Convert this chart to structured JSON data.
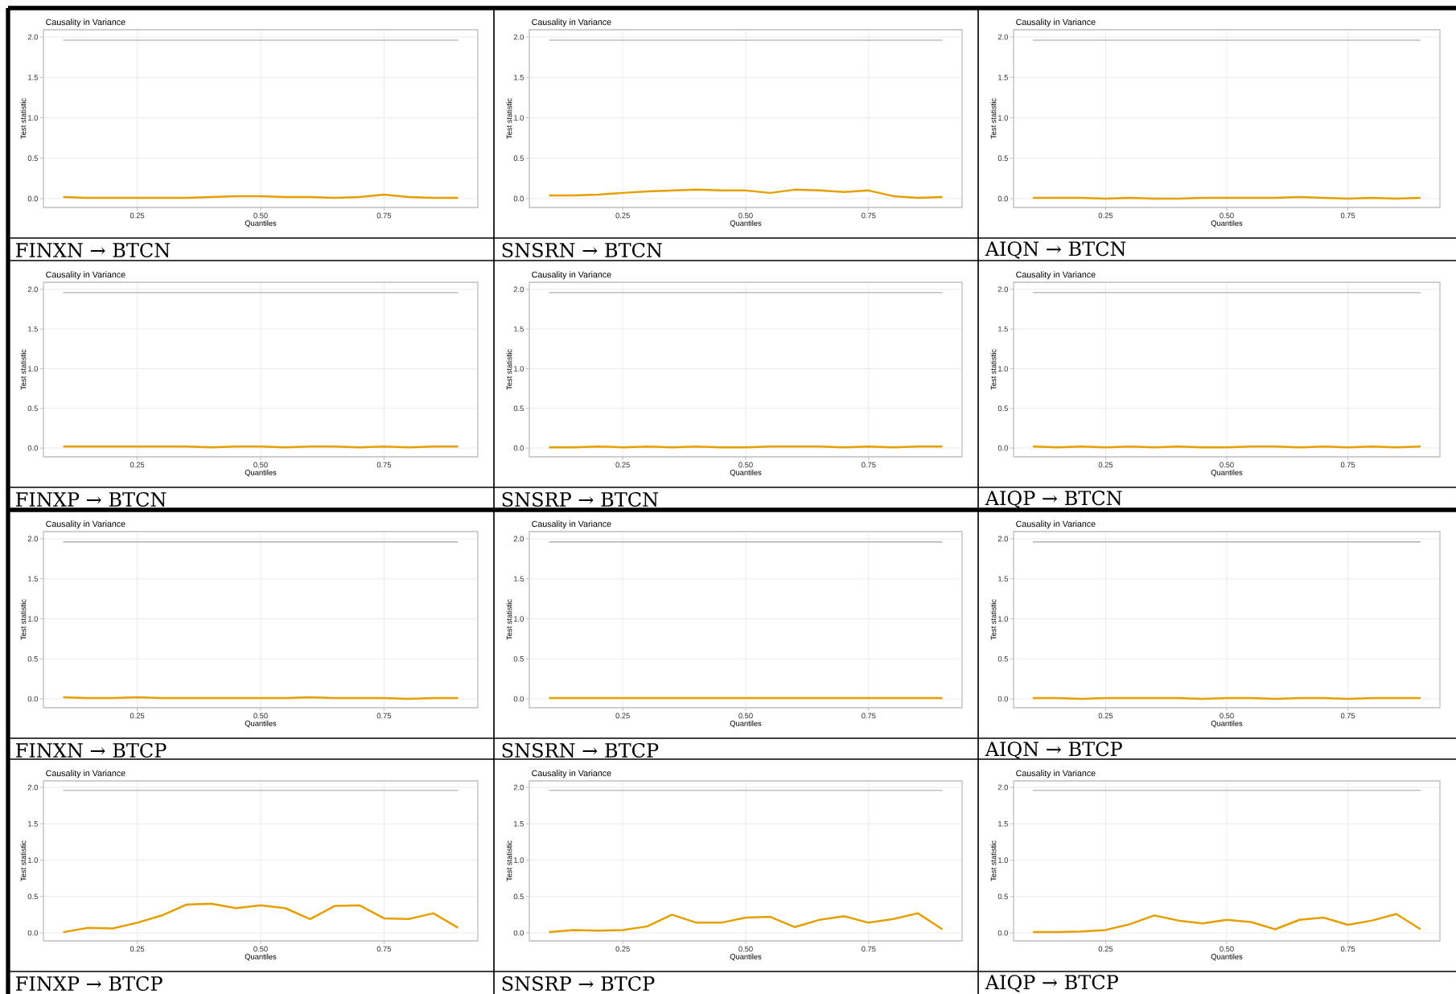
{
  "chart_data": [
    {
      "type": "line",
      "title": "Causality in Variance",
      "xlabel": "Quantiles",
      "ylabel": "Test statistic",
      "annotations": [
        "FINXN → BTCN"
      ],
      "ref_lines": [
        {
          "axis": "y",
          "value": 1.96,
          "color": "#bdbdbd"
        }
      ],
      "x": [
        0.1,
        0.15,
        0.2,
        0.25,
        0.3,
        0.35,
        0.4,
        0.45,
        0.5,
        0.55,
        0.6,
        0.65,
        0.7,
        0.75,
        0.8,
        0.85,
        0.9
      ],
      "xlim": [
        0.06,
        0.94
      ],
      "ylim": [
        -0.11,
        2.09
      ],
      "xticks": [
        {
          "value": 0.25,
          "label": "0.25"
        },
        {
          "value": 0.5,
          "label": "0.50"
        },
        {
          "value": 0.75,
          "label": "0.75"
        }
      ],
      "yticks": [
        {
          "value": 0,
          "label": "0.0"
        },
        {
          "value": 0.5,
          "label": "0.5"
        },
        {
          "value": 1,
          "label": "1.0"
        },
        {
          "value": 1.5,
          "label": "1.5"
        },
        {
          "value": 2,
          "label": "2.0"
        }
      ],
      "grid": true,
      "series": [
        {
          "color": "#e69f00",
          "values": [
            0.02,
            0.01,
            0.01,
            0.01,
            0.01,
            0.01,
            0.02,
            0.03,
            0.03,
            0.02,
            0.02,
            0.01,
            0.02,
            0.05,
            0.02,
            0.01,
            0.01
          ]
        }
      ]
    },
    {
      "type": "line",
      "title": "Causality in Variance",
      "xlabel": "Quantiles",
      "ylabel": "Test statistic",
      "annotations": [
        "SNSRN → BTCN"
      ],
      "ref_lines": [
        {
          "axis": "y",
          "value": 1.96,
          "color": "#bdbdbd"
        }
      ],
      "x": [
        0.1,
        0.15,
        0.2,
        0.25,
        0.3,
        0.35,
        0.4,
        0.45,
        0.5,
        0.55,
        0.6,
        0.65,
        0.7,
        0.75,
        0.8,
        0.85,
        0.9
      ],
      "xlim": [
        0.06,
        0.94
      ],
      "ylim": [
        -0.11,
        2.09
      ],
      "xticks": [
        {
          "value": 0.25,
          "label": "0.25"
        },
        {
          "value": 0.5,
          "label": "0.50"
        },
        {
          "value": 0.75,
          "label": "0.75"
        }
      ],
      "yticks": [
        {
          "value": 0,
          "label": "0.0"
        },
        {
          "value": 0.5,
          "label": "0.5"
        },
        {
          "value": 1,
          "label": "1.0"
        },
        {
          "value": 1.5,
          "label": "1.5"
        },
        {
          "value": 2,
          "label": "2.0"
        }
      ],
      "grid": true,
      "series": [
        {
          "color": "#e69f00",
          "values": [
            0.04,
            0.04,
            0.05,
            0.07,
            0.09,
            0.1,
            0.11,
            0.1,
            0.1,
            0.07,
            0.11,
            0.1,
            0.08,
            0.1,
            0.03,
            0.01,
            0.02
          ]
        }
      ]
    },
    {
      "type": "line",
      "title": "Causality in Variance",
      "xlabel": "Quantiles",
      "ylabel": "Test statistic",
      "annotations": [
        "AIQN → BTCN"
      ],
      "ref_lines": [
        {
          "axis": "y",
          "value": 1.96,
          "color": "#bdbdbd"
        }
      ],
      "x": [
        0.1,
        0.15,
        0.2,
        0.25,
        0.3,
        0.35,
        0.4,
        0.45,
        0.5,
        0.55,
        0.6,
        0.65,
        0.7,
        0.75,
        0.8,
        0.85,
        0.9
      ],
      "xlim": [
        0.06,
        0.94
      ],
      "ylim": [
        -0.11,
        2.09
      ],
      "xticks": [
        {
          "value": 0.25,
          "label": "0.25"
        },
        {
          "value": 0.5,
          "label": "0.50"
        },
        {
          "value": 0.75,
          "label": "0.75"
        }
      ],
      "yticks": [
        {
          "value": 0,
          "label": "0.0"
        },
        {
          "value": 0.5,
          "label": "0.5"
        },
        {
          "value": 1,
          "label": "1.0"
        },
        {
          "value": 1.5,
          "label": "1.5"
        },
        {
          "value": 2,
          "label": "2.0"
        }
      ],
      "grid": true,
      "series": [
        {
          "color": "#e69f00",
          "values": [
            0.01,
            0.01,
            0.01,
            0.0,
            0.01,
            0.0,
            0.0,
            0.01,
            0.01,
            0.01,
            0.01,
            0.02,
            0.01,
            0.0,
            0.01,
            0.0,
            0.01
          ]
        }
      ]
    },
    {
      "type": "line",
      "title": "Causality in Variance",
      "xlabel": "Quantiles",
      "ylabel": "Test statistic",
      "annotations": [
        "FINXP → BTCN"
      ],
      "ref_lines": [
        {
          "axis": "y",
          "value": 1.96,
          "color": "#bdbdbd"
        }
      ],
      "x": [
        0.1,
        0.15,
        0.2,
        0.25,
        0.3,
        0.35,
        0.4,
        0.45,
        0.5,
        0.55,
        0.6,
        0.65,
        0.7,
        0.75,
        0.8,
        0.85,
        0.9
      ],
      "xlim": [
        0.06,
        0.94
      ],
      "ylim": [
        -0.11,
        2.09
      ],
      "xticks": [
        {
          "value": 0.25,
          "label": "0.25"
        },
        {
          "value": 0.5,
          "label": "0.50"
        },
        {
          "value": 0.75,
          "label": "0.75"
        }
      ],
      "yticks": [
        {
          "value": 0,
          "label": "0.0"
        },
        {
          "value": 0.5,
          "label": "0.5"
        },
        {
          "value": 1,
          "label": "1.0"
        },
        {
          "value": 1.5,
          "label": "1.5"
        },
        {
          "value": 2,
          "label": "2.0"
        }
      ],
      "grid": true,
      "series": [
        {
          "color": "#e69f00",
          "values": [
            0.02,
            0.02,
            0.02,
            0.02,
            0.02,
            0.02,
            0.01,
            0.02,
            0.02,
            0.01,
            0.02,
            0.02,
            0.01,
            0.02,
            0.01,
            0.02,
            0.02
          ]
        }
      ]
    },
    {
      "type": "line",
      "title": "Causality in Variance",
      "xlabel": "Quantiles",
      "ylabel": "Test statistic",
      "annotations": [
        "SNSRP → BTCN"
      ],
      "ref_lines": [
        {
          "axis": "y",
          "value": 1.96,
          "color": "#bdbdbd"
        }
      ],
      "x": [
        0.1,
        0.15,
        0.2,
        0.25,
        0.3,
        0.35,
        0.4,
        0.45,
        0.5,
        0.55,
        0.6,
        0.65,
        0.7,
        0.75,
        0.8,
        0.85,
        0.9
      ],
      "xlim": [
        0.06,
        0.94
      ],
      "ylim": [
        -0.11,
        2.09
      ],
      "xticks": [
        {
          "value": 0.25,
          "label": "0.25"
        },
        {
          "value": 0.5,
          "label": "0.50"
        },
        {
          "value": 0.75,
          "label": "0.75"
        }
      ],
      "yticks": [
        {
          "value": 0,
          "label": "0.0"
        },
        {
          "value": 0.5,
          "label": "0.5"
        },
        {
          "value": 1,
          "label": "1.0"
        },
        {
          "value": 1.5,
          "label": "1.5"
        },
        {
          "value": 2,
          "label": "2.0"
        }
      ],
      "grid": true,
      "series": [
        {
          "color": "#e69f00",
          "values": [
            0.01,
            0.01,
            0.02,
            0.01,
            0.02,
            0.01,
            0.02,
            0.01,
            0.01,
            0.02,
            0.02,
            0.02,
            0.01,
            0.02,
            0.01,
            0.02,
            0.02
          ]
        }
      ]
    },
    {
      "type": "line",
      "title": "Causality in Variance",
      "xlabel": "Quantiles",
      "ylabel": "Test statistic",
      "annotations": [
        "AIQP → BTCN"
      ],
      "ref_lines": [
        {
          "axis": "y",
          "value": 1.96,
          "color": "#bdbdbd"
        }
      ],
      "x": [
        0.1,
        0.15,
        0.2,
        0.25,
        0.3,
        0.35,
        0.4,
        0.45,
        0.5,
        0.55,
        0.6,
        0.65,
        0.7,
        0.75,
        0.8,
        0.85,
        0.9
      ],
      "xlim": [
        0.06,
        0.94
      ],
      "ylim": [
        -0.11,
        2.09
      ],
      "xticks": [
        {
          "value": 0.25,
          "label": "0.25"
        },
        {
          "value": 0.5,
          "label": "0.50"
        },
        {
          "value": 0.75,
          "label": "0.75"
        }
      ],
      "yticks": [
        {
          "value": 0,
          "label": "0.0"
        },
        {
          "value": 0.5,
          "label": "0.5"
        },
        {
          "value": 1,
          "label": "1.0"
        },
        {
          "value": 1.5,
          "label": "1.5"
        },
        {
          "value": 2,
          "label": "2.0"
        }
      ],
      "grid": true,
      "series": [
        {
          "color": "#e69f00",
          "values": [
            0.02,
            0.01,
            0.02,
            0.01,
            0.02,
            0.01,
            0.02,
            0.01,
            0.01,
            0.02,
            0.02,
            0.01,
            0.02,
            0.01,
            0.02,
            0.01,
            0.02
          ]
        }
      ]
    },
    {
      "type": "line",
      "title": "Causality in Variance",
      "xlabel": "Quantiles",
      "ylabel": "Test statistic",
      "annotations": [
        "FINXN → BTCP"
      ],
      "ref_lines": [
        {
          "axis": "y",
          "value": 1.96,
          "color": "#bdbdbd"
        }
      ],
      "x": [
        0.1,
        0.15,
        0.2,
        0.25,
        0.3,
        0.35,
        0.4,
        0.45,
        0.5,
        0.55,
        0.6,
        0.65,
        0.7,
        0.75,
        0.8,
        0.85,
        0.9
      ],
      "xlim": [
        0.06,
        0.94
      ],
      "ylim": [
        -0.11,
        2.09
      ],
      "xticks": [
        {
          "value": 0.25,
          "label": "0.25"
        },
        {
          "value": 0.5,
          "label": "0.50"
        },
        {
          "value": 0.75,
          "label": "0.75"
        }
      ],
      "yticks": [
        {
          "value": 0,
          "label": "0.0"
        },
        {
          "value": 0.5,
          "label": "0.5"
        },
        {
          "value": 1,
          "label": "1.0"
        },
        {
          "value": 1.5,
          "label": "1.5"
        },
        {
          "value": 2,
          "label": "2.0"
        }
      ],
      "grid": true,
      "series": [
        {
          "color": "#e69f00",
          "values": [
            0.02,
            0.01,
            0.01,
            0.02,
            0.01,
            0.01,
            0.01,
            0.01,
            0.01,
            0.01,
            0.02,
            0.01,
            0.01,
            0.01,
            0.0,
            0.01,
            0.01
          ]
        }
      ]
    },
    {
      "type": "line",
      "title": "Causality in Variance",
      "xlabel": "Quantiles",
      "ylabel": "Test statistic",
      "annotations": [
        "SNSRN → BTCP"
      ],
      "ref_lines": [
        {
          "axis": "y",
          "value": 1.96,
          "color": "#bdbdbd"
        }
      ],
      "x": [
        0.1,
        0.15,
        0.2,
        0.25,
        0.3,
        0.35,
        0.4,
        0.45,
        0.5,
        0.55,
        0.6,
        0.65,
        0.7,
        0.75,
        0.8,
        0.85,
        0.9
      ],
      "xlim": [
        0.06,
        0.94
      ],
      "ylim": [
        -0.11,
        2.09
      ],
      "xticks": [
        {
          "value": 0.25,
          "label": "0.25"
        },
        {
          "value": 0.5,
          "label": "0.50"
        },
        {
          "value": 0.75,
          "label": "0.75"
        }
      ],
      "yticks": [
        {
          "value": 0,
          "label": "0.0"
        },
        {
          "value": 0.5,
          "label": "0.5"
        },
        {
          "value": 1,
          "label": "1.0"
        },
        {
          "value": 1.5,
          "label": "1.5"
        },
        {
          "value": 2,
          "label": "2.0"
        }
      ],
      "grid": true,
      "series": [
        {
          "color": "#e69f00",
          "values": [
            0.01,
            0.01,
            0.01,
            0.01,
            0.01,
            0.01,
            0.01,
            0.01,
            0.01,
            0.01,
            0.01,
            0.01,
            0.01,
            0.01,
            0.01,
            0.01,
            0.01
          ]
        }
      ]
    },
    {
      "type": "line",
      "title": "Causality in Variance",
      "xlabel": "Quantiles",
      "ylabel": "Test statistic",
      "annotations": [
        "AIQN → BTCP"
      ],
      "ref_lines": [
        {
          "axis": "y",
          "value": 1.96,
          "color": "#bdbdbd"
        }
      ],
      "x": [
        0.1,
        0.15,
        0.2,
        0.25,
        0.3,
        0.35,
        0.4,
        0.45,
        0.5,
        0.55,
        0.6,
        0.65,
        0.7,
        0.75,
        0.8,
        0.85,
        0.9
      ],
      "xlim": [
        0.06,
        0.94
      ],
      "ylim": [
        -0.11,
        2.09
      ],
      "xticks": [
        {
          "value": 0.25,
          "label": "0.25"
        },
        {
          "value": 0.5,
          "label": "0.50"
        },
        {
          "value": 0.75,
          "label": "0.75"
        }
      ],
      "yticks": [
        {
          "value": 0,
          "label": "0.0"
        },
        {
          "value": 0.5,
          "label": "0.5"
        },
        {
          "value": 1,
          "label": "1.0"
        },
        {
          "value": 1.5,
          "label": "1.5"
        },
        {
          "value": 2,
          "label": "2.0"
        }
      ],
      "grid": true,
      "series": [
        {
          "color": "#e69f00",
          "values": [
            0.01,
            0.01,
            0.0,
            0.01,
            0.01,
            0.01,
            0.01,
            0.0,
            0.01,
            0.01,
            0.0,
            0.01,
            0.01,
            0.0,
            0.01,
            0.01,
            0.01
          ]
        }
      ]
    },
    {
      "type": "line",
      "title": "Causality in Variance",
      "xlabel": "Quantiles",
      "ylabel": "Test statistic",
      "annotations": [
        "FINXP → BTCP"
      ],
      "ref_lines": [
        {
          "axis": "y",
          "value": 1.96,
          "color": "#bdbdbd"
        }
      ],
      "x": [
        0.1,
        0.15,
        0.2,
        0.25,
        0.3,
        0.35,
        0.4,
        0.45,
        0.5,
        0.55,
        0.6,
        0.65,
        0.7,
        0.75,
        0.8,
        0.85,
        0.9
      ],
      "xlim": [
        0.06,
        0.94
      ],
      "ylim": [
        -0.11,
        2.09
      ],
      "xticks": [
        {
          "value": 0.25,
          "label": "0.25"
        },
        {
          "value": 0.5,
          "label": "0.50"
        },
        {
          "value": 0.75,
          "label": "0.75"
        }
      ],
      "yticks": [
        {
          "value": 0,
          "label": "0.0"
        },
        {
          "value": 0.5,
          "label": "0.5"
        },
        {
          "value": 1,
          "label": "1.0"
        },
        {
          "value": 1.5,
          "label": "1.5"
        },
        {
          "value": 2,
          "label": "2.0"
        }
      ],
      "grid": true,
      "series": [
        {
          "color": "#e69f00",
          "values": [
            0.01,
            0.07,
            0.06,
            0.14,
            0.24,
            0.39,
            0.4,
            0.34,
            0.38,
            0.34,
            0.19,
            0.37,
            0.38,
            0.2,
            0.19,
            0.27,
            0.07
          ]
        }
      ]
    },
    {
      "type": "line",
      "title": "Causality in Variance",
      "xlabel": "Quantiles",
      "ylabel": "Test statistic",
      "annotations": [
        "SNSRP → BTCP"
      ],
      "ref_lines": [
        {
          "axis": "y",
          "value": 1.96,
          "color": "#bdbdbd"
        }
      ],
      "x": [
        0.1,
        0.15,
        0.2,
        0.25,
        0.3,
        0.35,
        0.4,
        0.45,
        0.5,
        0.55,
        0.6,
        0.65,
        0.7,
        0.75,
        0.8,
        0.85,
        0.9
      ],
      "xlim": [
        0.06,
        0.94
      ],
      "ylim": [
        -0.11,
        2.09
      ],
      "xticks": [
        {
          "value": 0.25,
          "label": "0.25"
        },
        {
          "value": 0.5,
          "label": "0.50"
        },
        {
          "value": 0.75,
          "label": "0.75"
        }
      ],
      "yticks": [
        {
          "value": 0,
          "label": "0.0"
        },
        {
          "value": 0.5,
          "label": "0.5"
        },
        {
          "value": 1,
          "label": "1.0"
        },
        {
          "value": 1.5,
          "label": "1.5"
        },
        {
          "value": 2,
          "label": "2.0"
        }
      ],
      "grid": true,
      "series": [
        {
          "color": "#e69f00",
          "values": [
            0.01,
            0.04,
            0.03,
            0.04,
            0.09,
            0.25,
            0.14,
            0.14,
            0.21,
            0.22,
            0.08,
            0.18,
            0.23,
            0.14,
            0.19,
            0.27,
            0.05
          ]
        }
      ]
    },
    {
      "type": "line",
      "title": "Causality in Variance",
      "xlabel": "Quantiles",
      "ylabel": "Test statistic",
      "annotations": [
        "AIQP → BTCP"
      ],
      "ref_lines": [
        {
          "axis": "y",
          "value": 1.96,
          "color": "#bdbdbd"
        }
      ],
      "x": [
        0.1,
        0.15,
        0.2,
        0.25,
        0.3,
        0.35,
        0.4,
        0.45,
        0.5,
        0.55,
        0.6,
        0.65,
        0.7,
        0.75,
        0.8,
        0.85,
        0.9
      ],
      "xlim": [
        0.06,
        0.94
      ],
      "ylim": [
        -0.11,
        2.09
      ],
      "xticks": [
        {
          "value": 0.25,
          "label": "0.25"
        },
        {
          "value": 0.5,
          "label": "0.50"
        },
        {
          "value": 0.75,
          "label": "0.75"
        }
      ],
      "yticks": [
        {
          "value": 0,
          "label": "0.0"
        },
        {
          "value": 0.5,
          "label": "0.5"
        },
        {
          "value": 1,
          "label": "1.0"
        },
        {
          "value": 1.5,
          "label": "1.5"
        },
        {
          "value": 2,
          "label": "2.0"
        }
      ],
      "grid": true,
      "series": [
        {
          "color": "#e69f00",
          "values": [
            0.01,
            0.01,
            0.02,
            0.04,
            0.12,
            0.24,
            0.17,
            0.13,
            0.18,
            0.15,
            0.05,
            0.18,
            0.21,
            0.11,
            0.17,
            0.26,
            0.05
          ]
        }
      ]
    }
  ]
}
